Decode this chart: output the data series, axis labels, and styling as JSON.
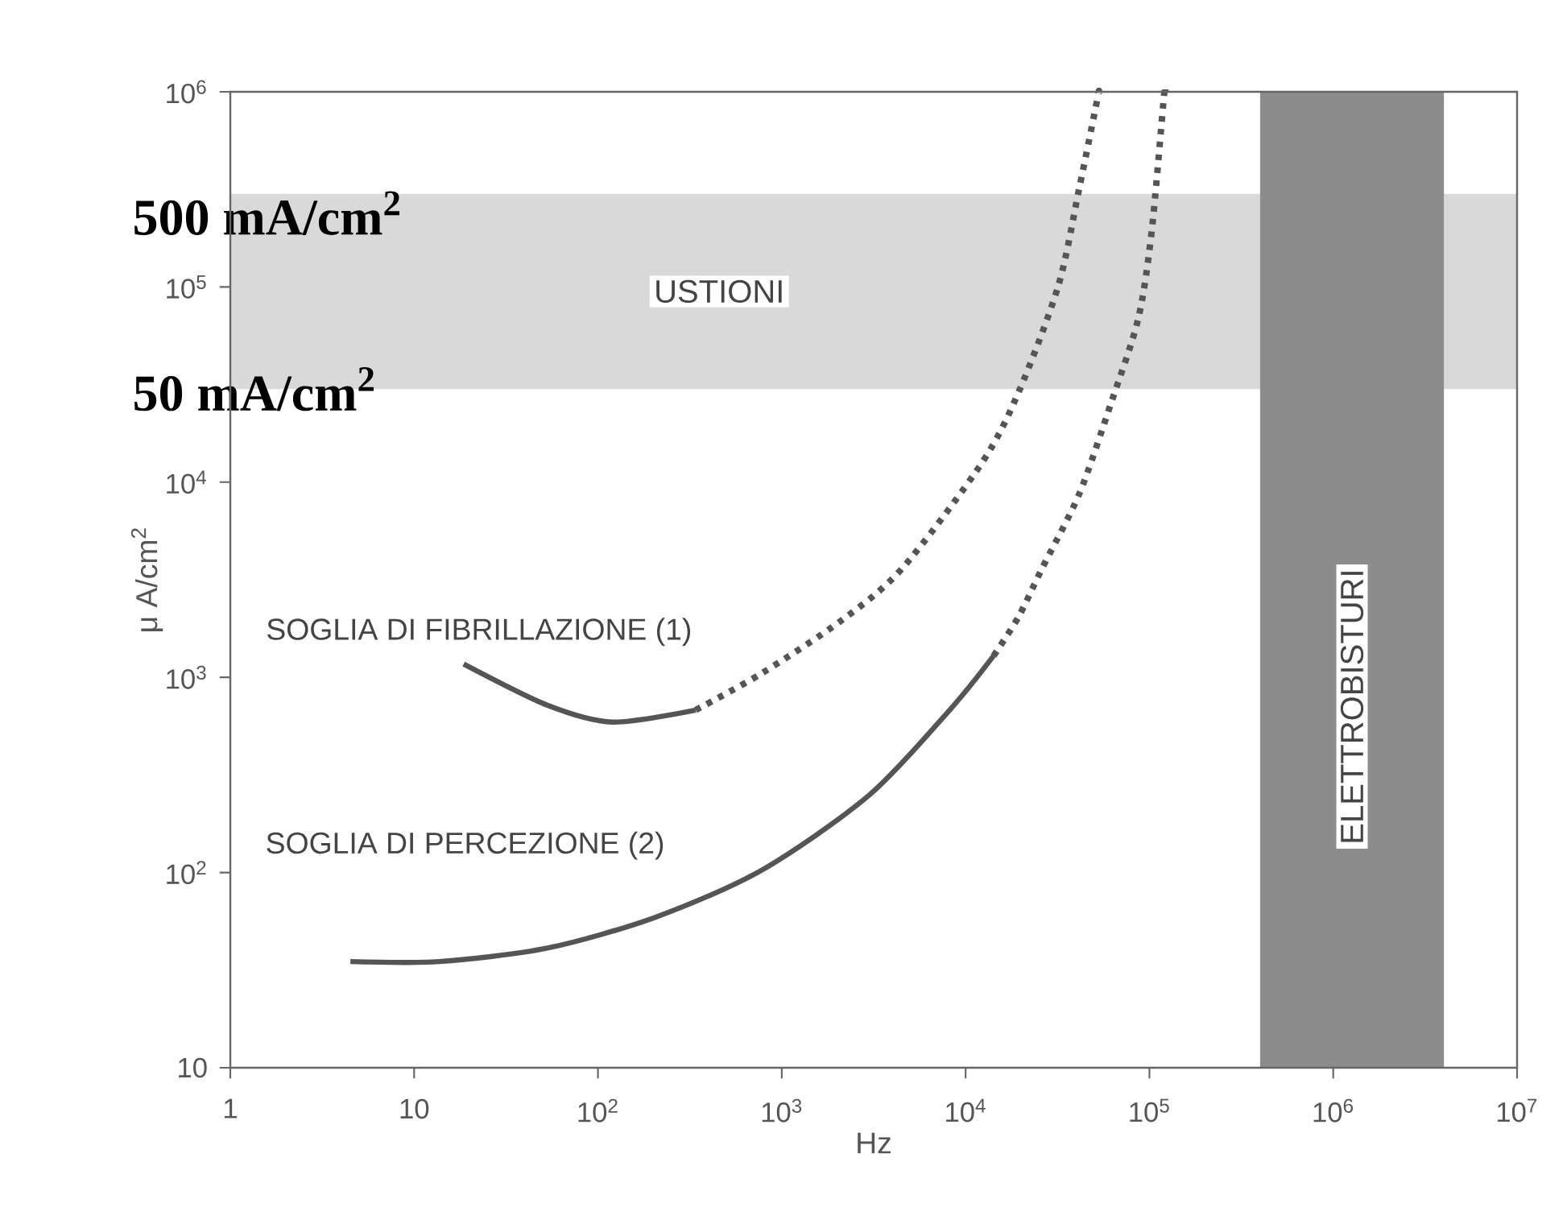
{
  "chart_data": {
    "type": "line",
    "xlabel": "Hz",
    "ylabel": "μ A/cm$^{2}$",
    "log": "xy",
    "xlim": [
      1,
      10000000
    ],
    "ylim": [
      10,
      1000000
    ],
    "xticks": [
      1,
      10,
      {
        "value": 100,
        "label": "10$^{2}$"
      },
      {
        "value": 1000,
        "label": "10$^{3}$"
      },
      {
        "value": 10000,
        "label": "10$^{4}$"
      },
      {
        "value": 100000,
        "label": "10$^{5}$"
      },
      {
        "value": 1000000,
        "label": "10$^{6}$"
      },
      {
        "value": 10000000,
        "label": "10$^{7}$"
      }
    ],
    "yticks": [
      10,
      {
        "value": 100,
        "label": "10$^{2}$"
      },
      {
        "value": 1000,
        "label": "10$^{3}$"
      },
      {
        "value": 10000,
        "label": "10$^{4}$"
      },
      {
        "value": 100000,
        "label": "10$^{5}$"
      },
      {
        "value": 1000000,
        "label": "10$^{6}$"
      }
    ],
    "series": [
      {
        "name": "SOGLIA DI FIBRILLAZIONE (1)",
        "color": "#555555",
        "line_style": "solid",
        "x": [
          18.6,
          53,
          120,
          340
        ],
        "values": [
          1170,
          720,
          590,
          680
        ]
      },
      {
        "color": "#555555",
        "line_style": "dashed",
        "x": [
          340,
          780,
          2100,
          4500,
          12300,
          19600,
          32000,
          41500,
          52000,
          53000
        ],
        "values": [
          680,
          1050,
          1950,
          3600,
          12600,
          29500,
          102000,
          320000,
          910000,
          1000000
        ]
      },
      {
        "name": "SOGLIA DI PERCEZIONE (2)",
        "color": "#555555",
        "line_style": "solid",
        "x": [
          4.5,
          13.7,
          53,
          205,
          780,
          3000,
          8300,
          14200
        ],
        "values": [
          35,
          35,
          41,
          59,
          103,
          250,
          690,
          1290
        ]
      },
      {
        "color": "#555555",
        "line_style": "dashed",
        "x": [
          14200,
          19400,
          26000,
          41500,
          62000,
          87000,
          103000,
          120000,
          122000
        ],
        "values": [
          1290,
          2040,
          3600,
          8700,
          25600,
          69000,
          195000,
          950000,
          1000000
        ]
      }
    ],
    "bands": [
      {
        "axis": "y",
        "from": 30000,
        "to": 300000,
        "label": "USTIONI",
        "color": "#d9d9d9"
      },
      {
        "axis": "x",
        "from": 400000,
        "to": 4000000,
        "label": "ELETTROBISTURI",
        "color": "#8c8c8c"
      }
    ],
    "annotations": [
      "500 mA/cm$^{2}$",
      "50 mA/cm$^{2}$"
    ]
  }
}
